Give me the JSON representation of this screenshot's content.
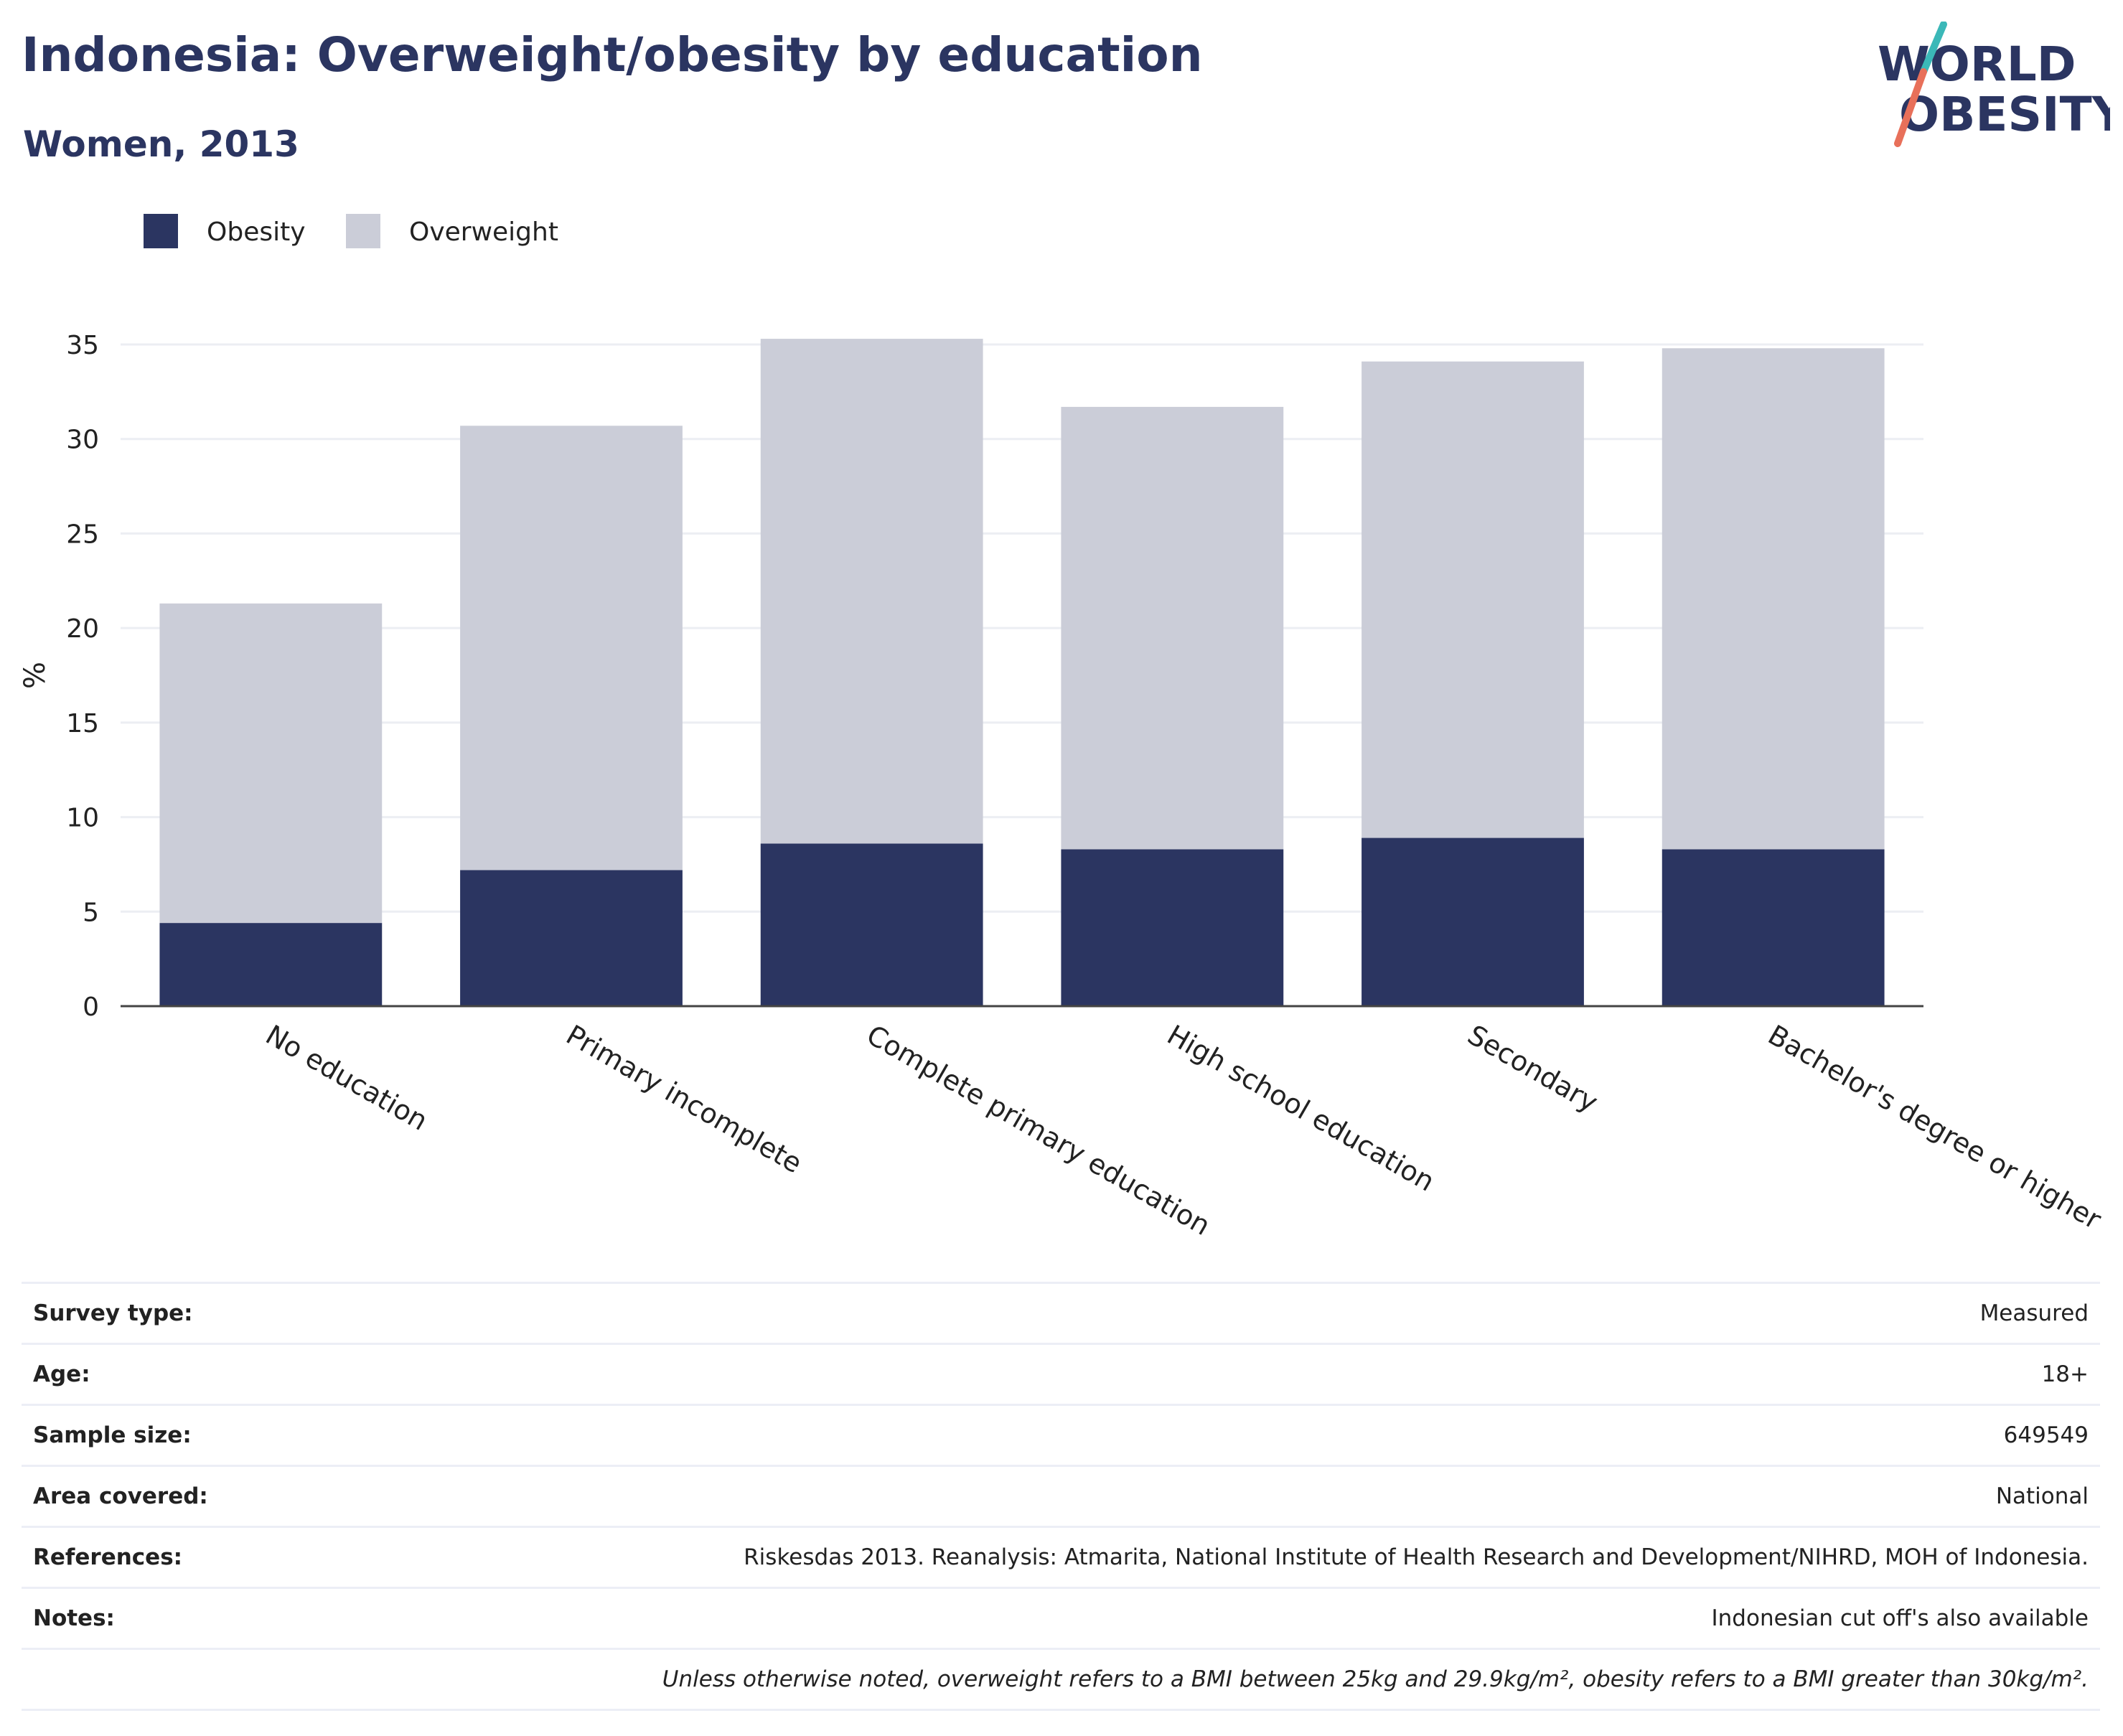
{
  "header": {
    "title": "Indonesia: Overweight/obesity by education",
    "subtitle": "Women, 2013"
  },
  "logo": {
    "line1": "WORLD",
    "line2": "OBESITY"
  },
  "colors": {
    "obesity": "#2b3561",
    "overweight": "#cbcdd8",
    "accent_teal": "#3bb8b8",
    "accent_coral": "#e8705a",
    "title": "#2b3561"
  },
  "chart_data": {
    "type": "bar",
    "stacked": true,
    "categories": [
      "No education",
      "Primary incomplete",
      "Complete primary education",
      "High school education",
      "Secondary",
      "Bachelor's degree or higher"
    ],
    "series": [
      {
        "name": "Obesity",
        "values": [
          4.4,
          7.2,
          8.6,
          8.3,
          8.9,
          8.3
        ]
      },
      {
        "name": "Overweight",
        "values": [
          16.9,
          23.5,
          26.7,
          23.4,
          25.2,
          26.5
        ]
      }
    ],
    "ylabel": "%",
    "xlabel": "",
    "ylim": [
      0,
      35
    ],
    "yticks": [
      "0",
      "5",
      "10",
      "15",
      "20",
      "25",
      "30",
      "35"
    ],
    "legend": "top-left",
    "grid": true
  },
  "info": {
    "rows": [
      {
        "key": "Survey type:",
        "value": "Measured"
      },
      {
        "key": "Age:",
        "value": "18+"
      },
      {
        "key": "Sample size:",
        "value": "649549"
      },
      {
        "key": "Area covered:",
        "value": "National"
      },
      {
        "key": "References:",
        "value": "Riskesdas 2013. Reanalysis: Atmarita, National Institute of Health Research and Development/NIHRD, MOH of Indonesia."
      },
      {
        "key": "Notes:",
        "value": "Indonesian cut off's also available"
      }
    ],
    "footnote": "Unless otherwise noted, overweight refers to a BMI between 25kg and 29.9kg/m², obesity refers to a BMI greater than 30kg/m²."
  }
}
